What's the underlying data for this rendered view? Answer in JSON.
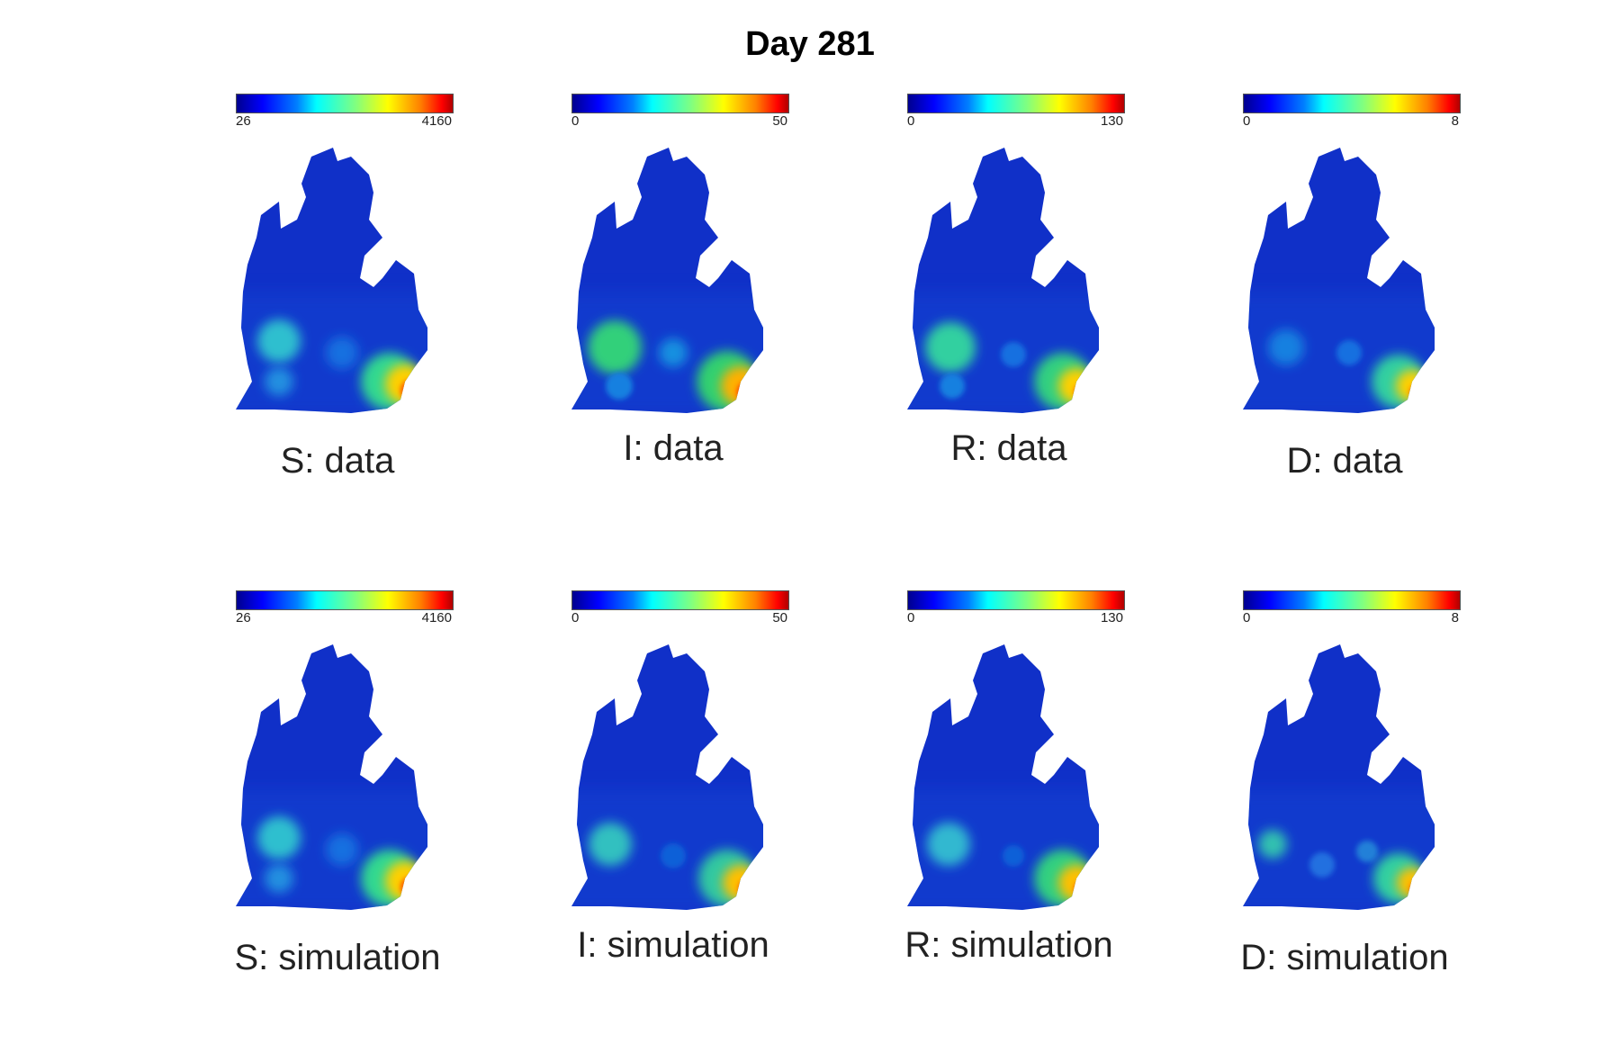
{
  "title": "Day 281",
  "chart_data": {
    "type": "heatmap",
    "title": "Day 281",
    "colormap": "jet",
    "panels": [
      {
        "row": "data",
        "variable": "S",
        "label": "S: data",
        "cmin": "26",
        "cmax": "4160",
        "legend": "top"
      },
      {
        "row": "data",
        "variable": "I",
        "label": "I: data",
        "cmin": "0",
        "cmax": "50",
        "legend": "top"
      },
      {
        "row": "data",
        "variable": "R",
        "label": "R: data",
        "cmin": "0",
        "cmax": "130",
        "legend": "top"
      },
      {
        "row": "data",
        "variable": "D",
        "label": "D: data",
        "cmin": "0",
        "cmax": "8",
        "legend": "top"
      },
      {
        "row": "simulation",
        "variable": "S",
        "label": "S: simulation",
        "cmin": "26",
        "cmax": "4160",
        "legend": "top"
      },
      {
        "row": "simulation",
        "variable": "I",
        "label": "I: simulation",
        "cmin": "0",
        "cmax": "50",
        "legend": "top"
      },
      {
        "row": "simulation",
        "variable": "R",
        "label": "R: simulation",
        "cmin": "0",
        "cmax": "130",
        "legend": "top"
      },
      {
        "row": "simulation",
        "variable": "D",
        "label": "D: simulation",
        "cmin": "0",
        "cmax": "8",
        "legend": "top"
      }
    ]
  },
  "colors": {
    "background": "#ffffff",
    "map_base": "#1030c8",
    "low": "#0000ff",
    "mid": "#00ffff",
    "high": "#ff0000"
  }
}
